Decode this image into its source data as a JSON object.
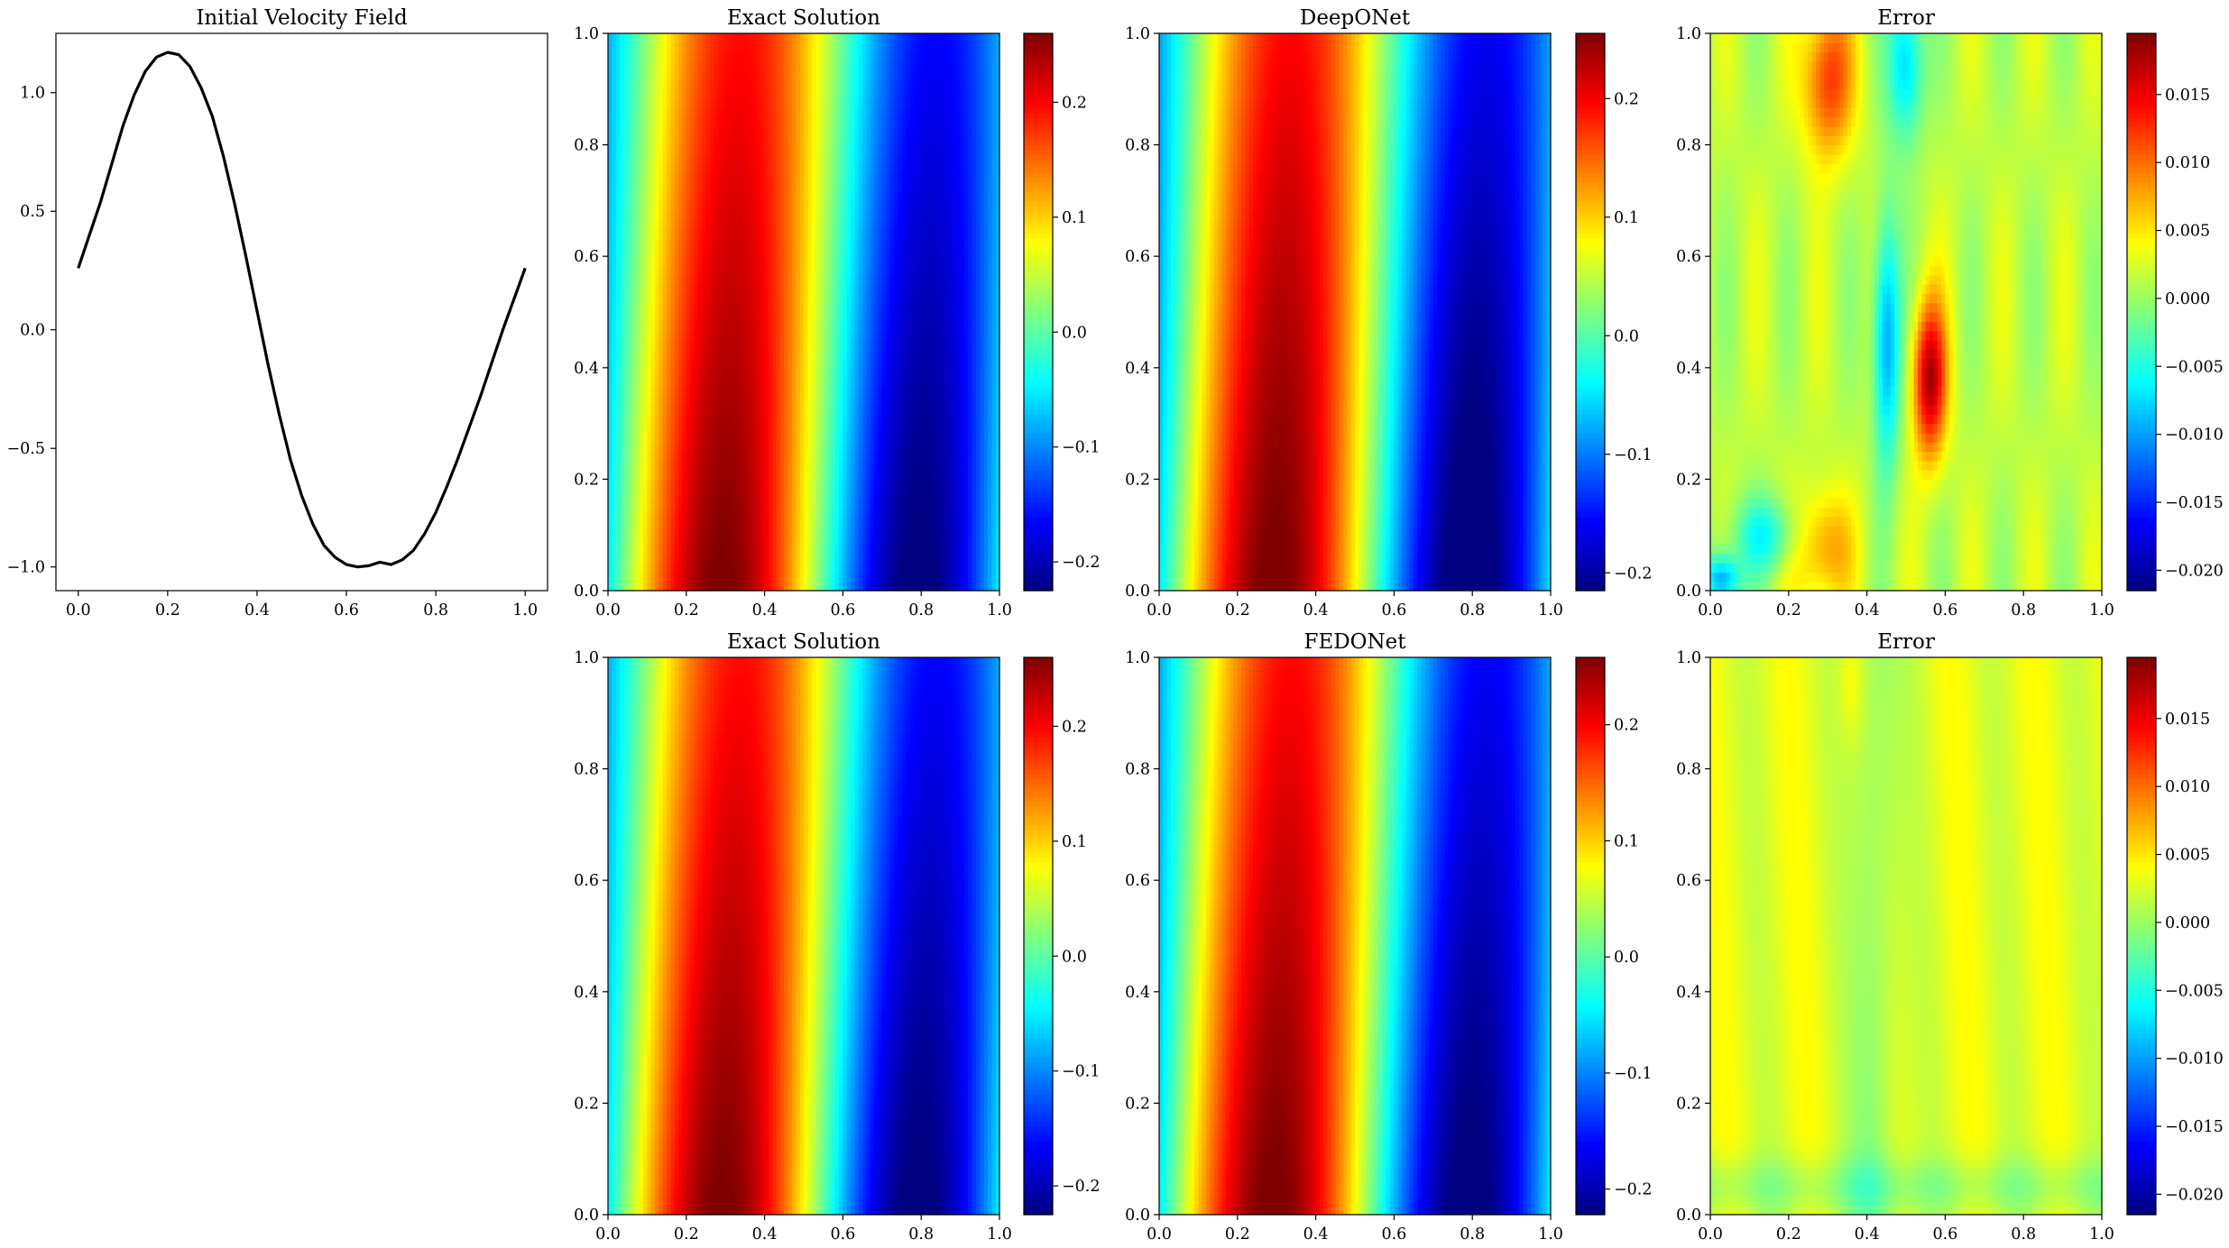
{
  "figure": {
    "background": "#ffffff"
  },
  "chart_data": [
    {
      "type": "line",
      "title": "Initial Velocity Field",
      "xlabel": "",
      "ylabel": "",
      "xlim": [
        -0.05,
        1.05
      ],
      "ylim": [
        -1.1,
        1.25
      ],
      "xticks": [
        0.0,
        0.2,
        0.4,
        0.6,
        0.8,
        1.0
      ],
      "xtick_labels": [
        "0.0",
        "0.2",
        "0.4",
        "0.6",
        "0.8",
        "1.0"
      ],
      "yticks": [
        -1.0,
        -0.5,
        0.0,
        0.5,
        1.0
      ],
      "ytick_labels": [
        "−1.0",
        "−0.5",
        "0.0",
        "0.5",
        "1.0"
      ],
      "grid": false,
      "line_color": "#000000",
      "x": [
        0.0,
        0.025,
        0.05,
        0.075,
        0.1,
        0.125,
        0.15,
        0.175,
        0.2,
        0.225,
        0.25,
        0.275,
        0.3,
        0.325,
        0.35,
        0.375,
        0.4,
        0.425,
        0.45,
        0.475,
        0.5,
        0.525,
        0.55,
        0.575,
        0.6,
        0.625,
        0.65,
        0.675,
        0.7,
        0.725,
        0.75,
        0.775,
        0.8,
        0.825,
        0.85,
        0.875,
        0.9,
        0.925,
        0.95,
        0.975,
        1.0
      ],
      "y": [
        0.26,
        0.4,
        0.54,
        0.7,
        0.86,
        0.99,
        1.09,
        1.15,
        1.17,
        1.16,
        1.11,
        1.02,
        0.9,
        0.73,
        0.53,
        0.31,
        0.08,
        -0.15,
        -0.36,
        -0.55,
        -0.7,
        -0.82,
        -0.91,
        -0.96,
        -0.99,
        -1.0,
        -0.995,
        -0.98,
        -0.99,
        -0.97,
        -0.93,
        -0.86,
        -0.77,
        -0.66,
        -0.54,
        -0.41,
        -0.28,
        -0.14,
        0.0,
        0.13,
        0.26
      ]
    },
    {
      "type": "heatmap",
      "title": "Exact Solution",
      "field": "exact",
      "xlim": [
        0,
        1
      ],
      "ylim": [
        0,
        1
      ],
      "xtick_labels": [
        "0.0",
        "0.2",
        "0.4",
        "0.6",
        "0.8",
        "1.0"
      ],
      "ytick_labels": [
        "0.0",
        "0.2",
        "0.4",
        "0.6",
        "0.8",
        "1.0"
      ],
      "colormap": "jet",
      "color_range": [
        -0.225,
        0.26
      ],
      "colorbar_ticks": [
        -0.2,
        -0.1,
        0.0,
        0.1,
        0.2
      ],
      "colorbar_labels": [
        "−0.2",
        "−0.1",
        "0.0",
        "0.1",
        "0.2"
      ]
    },
    {
      "type": "heatmap",
      "title": "DeepONet",
      "field": "deeponet",
      "xlim": [
        0,
        1
      ],
      "ylim": [
        0,
        1
      ],
      "xtick_labels": [
        "0.0",
        "0.2",
        "0.4",
        "0.6",
        "0.8",
        "1.0"
      ],
      "ytick_labels": [
        "0.0",
        "0.2",
        "0.4",
        "0.6",
        "0.8",
        "1.0"
      ],
      "colormap": "jet",
      "color_range": [
        -0.215,
        0.255
      ],
      "colorbar_ticks": [
        -0.2,
        -0.1,
        0.0,
        0.1,
        0.2
      ],
      "colorbar_labels": [
        "−0.2",
        "−0.1",
        "0.0",
        "0.1",
        "0.2"
      ]
    },
    {
      "type": "heatmap",
      "title": "Error",
      "field": "error_deeponet",
      "xlim": [
        0,
        1
      ],
      "ylim": [
        0,
        1
      ],
      "xtick_labels": [
        "0.0",
        "0.2",
        "0.4",
        "0.6",
        "0.8",
        "1.0"
      ],
      "ytick_labels": [
        "0.0",
        "0.2",
        "0.4",
        "0.6",
        "0.8",
        "1.0"
      ],
      "colormap": "jet",
      "color_range": [
        -0.0215,
        0.0195
      ],
      "colorbar_ticks": [
        -0.02,
        -0.015,
        -0.01,
        -0.005,
        0.0,
        0.005,
        0.01,
        0.015
      ],
      "colorbar_labels": [
        "−0.020",
        "−0.015",
        "−0.010",
        "−0.005",
        "0.000",
        "0.005",
        "0.010",
        "0.015"
      ]
    },
    {
      "type": "heatmap",
      "title": "Exact Solution",
      "field": "exact",
      "xlim": [
        0,
        1
      ],
      "ylim": [
        0,
        1
      ],
      "xtick_labels": [
        "0.0",
        "0.2",
        "0.4",
        "0.6",
        "0.8",
        "1.0"
      ],
      "ytick_labels": [
        "0.0",
        "0.2",
        "0.4",
        "0.6",
        "0.8",
        "1.0"
      ],
      "colormap": "jet",
      "color_range": [
        -0.225,
        0.26
      ],
      "colorbar_ticks": [
        -0.2,
        -0.1,
        0.0,
        0.1,
        0.2
      ],
      "colorbar_labels": [
        "−0.2",
        "−0.1",
        "0.0",
        "0.1",
        "0.2"
      ]
    },
    {
      "type": "heatmap",
      "title": "FEDONet",
      "field": "fedonet",
      "xlim": [
        0,
        1
      ],
      "ylim": [
        0,
        1
      ],
      "xtick_labels": [
        "0.0",
        "0.2",
        "0.4",
        "0.6",
        "0.8",
        "1.0"
      ],
      "ytick_labels": [
        "0.0",
        "0.2",
        "0.4",
        "0.6",
        "0.8",
        "1.0"
      ],
      "colormap": "jet",
      "color_range": [
        -0.222,
        0.258
      ],
      "colorbar_ticks": [
        -0.2,
        -0.1,
        0.0,
        0.1,
        0.2
      ],
      "colorbar_labels": [
        "−0.2",
        "−0.1",
        "0.0",
        "0.1",
        "0.2"
      ]
    },
    {
      "type": "heatmap",
      "title": "Error",
      "field": "error_fedonet",
      "xlim": [
        0,
        1
      ],
      "ylim": [
        0,
        1
      ],
      "xtick_labels": [
        "0.0",
        "0.2",
        "0.4",
        "0.6",
        "0.8",
        "1.0"
      ],
      "ytick_labels": [
        "0.0",
        "0.2",
        "0.4",
        "0.6",
        "0.8",
        "1.0"
      ],
      "colormap": "jet",
      "color_range": [
        -0.0215,
        0.0195
      ],
      "colorbar_ticks": [
        -0.02,
        -0.015,
        -0.01,
        -0.005,
        0.0,
        0.005,
        0.01,
        0.015
      ],
      "colorbar_labels": [
        "−0.020",
        "−0.015",
        "−0.010",
        "−0.005",
        "0.000",
        "0.005",
        "0.010",
        "0.015"
      ]
    }
  ]
}
